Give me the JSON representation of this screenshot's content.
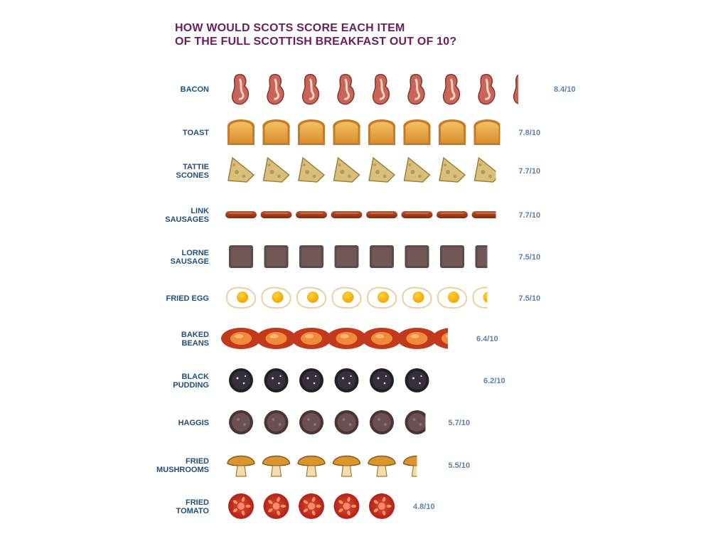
{
  "title": {
    "line1": "HOW WOULD SCOTS SCORE EACH ITEM",
    "line2": "OF THE FULL SCOTTISH BREAKFAST OUT OF 10?"
  },
  "colors": {
    "title": "#6b1e5e",
    "labels": "#1f4f7a",
    "scores": "#5a82ad"
  },
  "chart_data": {
    "type": "bar",
    "orientation": "horizontal",
    "style": "pictogram",
    "max_score": 10,
    "categories": [
      {
        "lines": [
          "BACON"
        ],
        "icon": "bacon-icon",
        "value": 8.4,
        "label": "8.4/10"
      },
      {
        "lines": [
          "TOAST"
        ],
        "icon": "toast-icon",
        "value": 7.8,
        "label": "7.8/10"
      },
      {
        "lines": [
          "TATTIE",
          "SCONES"
        ],
        "icon": "tattie-scone-icon",
        "value": 7.7,
        "label": "7.7/10"
      },
      {
        "lines": [
          "LINK",
          "SAUSAGES"
        ],
        "icon": "link-sausage-icon",
        "value": 7.7,
        "label": "7.7/10"
      },
      {
        "lines": [
          "LORNE",
          "SAUSAGE"
        ],
        "icon": "lorne-sausage-icon",
        "value": 7.5,
        "label": "7.5/10"
      },
      {
        "lines": [
          "FRIED EGG"
        ],
        "icon": "fried-egg-icon",
        "value": 7.5,
        "label": "7.5/10"
      },
      {
        "lines": [
          "BAKED",
          "BEANS"
        ],
        "icon": "baked-beans-icon",
        "value": 6.4,
        "label": "6.4/10"
      },
      {
        "lines": [
          "BLACK",
          "PUDDING"
        ],
        "icon": "black-pudding-icon",
        "value": 6.2,
        "label": "6.2/10"
      },
      {
        "lines": [
          "HAGGIS"
        ],
        "icon": "haggis-icon",
        "value": 5.7,
        "label": "5.7/10"
      },
      {
        "lines": [
          "FRIED",
          "MUSHROOMS"
        ],
        "icon": "mushroom-icon",
        "value": 5.5,
        "label": "5.5/10"
      },
      {
        "lines": [
          "FRIED",
          "TOMATO"
        ],
        "icon": "tomato-icon",
        "value": 4.8,
        "label": "4.8/10"
      }
    ]
  }
}
